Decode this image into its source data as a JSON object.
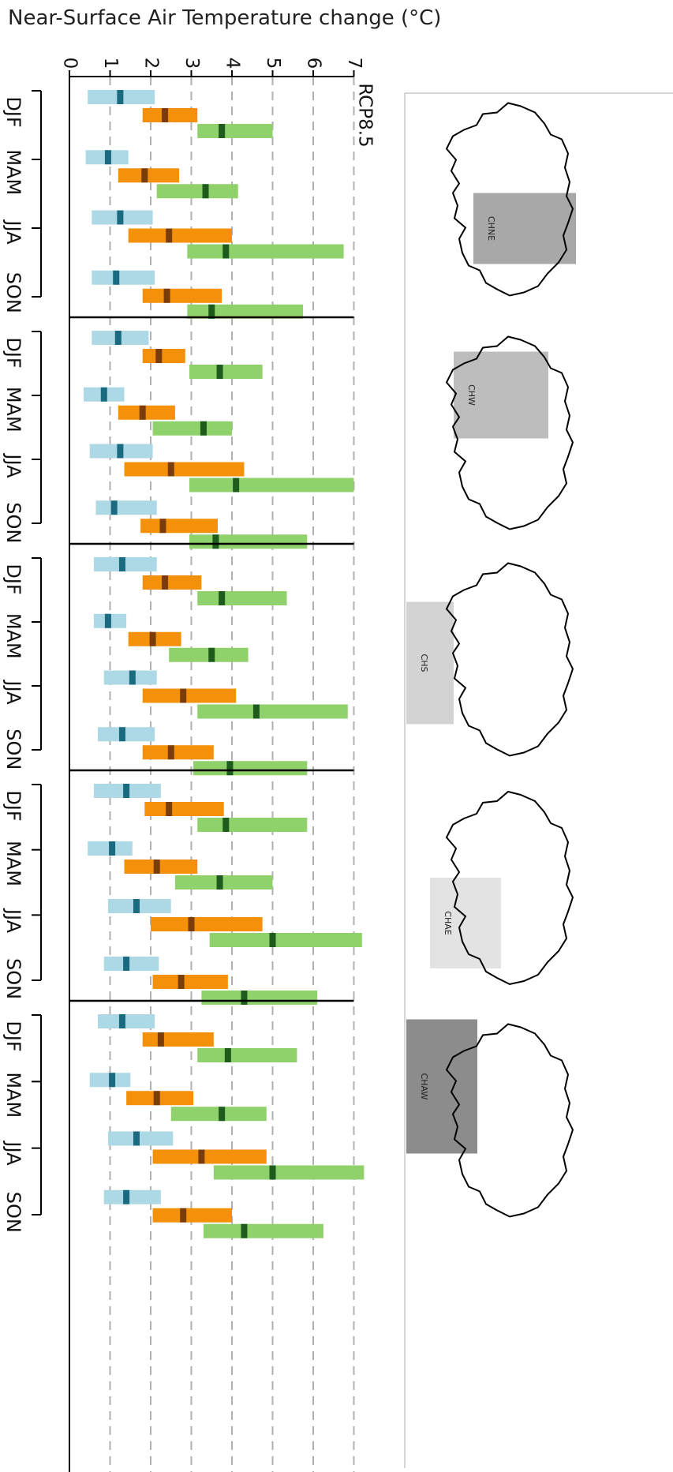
{
  "title": "Near-Surface Air Temperature change (°C)",
  "chart_data": {
    "type": "bar",
    "title": "Near-Surface Air Temperature change (°C)",
    "scenario": "RCP8.5",
    "xlim": [
      0,
      7
    ],
    "ticks": [
      0,
      1,
      2,
      3,
      4,
      5,
      6,
      7
    ],
    "grid": true,
    "seasons": [
      "DJF",
      "MAM",
      "JJA",
      "SON"
    ],
    "colors": {
      "blue": "#add8e6",
      "blue_median": "#1a6a80",
      "orange": "#f5900a",
      "orange_median": "#7a3d0a",
      "green": "#8fd16a",
      "green_median": "#1d5c1d"
    },
    "panels": [
      {
        "region": "CHNE",
        "region_color": "#a8a8a8",
        "seasons": [
          {
            "season": "DJF",
            "ranges": [
              [
                0.45,
                2.1,
                1.25
              ],
              [
                1.8,
                3.15,
                2.35
              ],
              [
                3.15,
                5.0,
                3.75
              ]
            ]
          },
          {
            "season": "MAM",
            "ranges": [
              [
                0.4,
                1.45,
                0.95
              ],
              [
                1.2,
                2.7,
                1.85
              ],
              [
                2.15,
                4.15,
                3.35
              ]
            ]
          },
          {
            "season": "JJA",
            "ranges": [
              [
                0.55,
                2.05,
                1.25
              ],
              [
                1.45,
                4.0,
                2.45
              ],
              [
                2.9,
                6.75,
                3.85
              ]
            ]
          },
          {
            "season": "SON",
            "ranges": [
              [
                0.55,
                2.1,
                1.15
              ],
              [
                1.8,
                3.75,
                2.4
              ],
              [
                2.9,
                5.75,
                3.5
              ]
            ]
          }
        ]
      },
      {
        "region": "CHW",
        "region_color": "#bdbdbd",
        "seasons": [
          {
            "season": "DJF",
            "ranges": [
              [
                0.55,
                1.95,
                1.2
              ],
              [
                1.8,
                2.85,
                2.2
              ],
              [
                2.95,
                4.75,
                3.7
              ]
            ]
          },
          {
            "season": "MAM",
            "ranges": [
              [
                0.35,
                1.35,
                0.85
              ],
              [
                1.2,
                2.6,
                1.8
              ],
              [
                2.05,
                4.0,
                3.3
              ]
            ]
          },
          {
            "season": "JJA",
            "ranges": [
              [
                0.5,
                2.05,
                1.25
              ],
              [
                1.35,
                4.3,
                2.5
              ],
              [
                2.95,
                7.0,
                4.1
              ]
            ]
          },
          {
            "season": "SON",
            "ranges": [
              [
                0.65,
                2.15,
                1.1
              ],
              [
                1.75,
                3.65,
                2.3
              ],
              [
                2.95,
                5.85,
                3.6
              ]
            ]
          }
        ]
      },
      {
        "region": "CHS",
        "region_color": "#d3d3d3",
        "seasons": [
          {
            "season": "DJF",
            "ranges": [
              [
                0.6,
                2.15,
                1.3
              ],
              [
                1.8,
                3.25,
                2.35
              ],
              [
                3.15,
                5.35,
                3.75
              ]
            ]
          },
          {
            "season": "MAM",
            "ranges": [
              [
                0.6,
                1.4,
                0.95
              ],
              [
                1.45,
                2.75,
                2.05
              ],
              [
                2.45,
                4.4,
                3.5
              ]
            ]
          },
          {
            "season": "JJA",
            "ranges": [
              [
                0.85,
                2.15,
                1.55
              ],
              [
                1.8,
                4.1,
                2.8
              ],
              [
                3.15,
                6.85,
                4.6
              ]
            ]
          },
          {
            "season": "SON",
            "ranges": [
              [
                0.7,
                2.1,
                1.3
              ],
              [
                1.8,
                3.55,
                2.5
              ],
              [
                3.05,
                5.85,
                3.95
              ]
            ]
          }
        ]
      },
      {
        "region": "CHAE",
        "region_color": "#e3e3e3",
        "seasons": [
          {
            "season": "DJF",
            "ranges": [
              [
                0.6,
                2.25,
                1.4
              ],
              [
                1.85,
                3.8,
                2.45
              ],
              [
                3.15,
                5.85,
                3.85
              ]
            ]
          },
          {
            "season": "MAM",
            "ranges": [
              [
                0.45,
                1.55,
                1.05
              ],
              [
                1.35,
                3.15,
                2.15
              ],
              [
                2.6,
                5.0,
                3.7
              ]
            ]
          },
          {
            "season": "JJA",
            "ranges": [
              [
                0.95,
                2.5,
                1.65
              ],
              [
                2.0,
                4.75,
                3.0
              ],
              [
                3.45,
                7.2,
                5.0
              ]
            ]
          },
          {
            "season": "SON",
            "ranges": [
              [
                0.85,
                2.2,
                1.4
              ],
              [
                2.05,
                3.9,
                2.75
              ],
              [
                3.25,
                6.1,
                4.3
              ]
            ]
          }
        ]
      },
      {
        "region": "CHAW",
        "region_color": "#8c8c8c",
        "seasons": [
          {
            "season": "DJF",
            "ranges": [
              [
                0.7,
                2.1,
                1.3
              ],
              [
                1.8,
                3.55,
                2.25
              ],
              [
                3.15,
                5.6,
                3.9
              ]
            ]
          },
          {
            "season": "MAM",
            "ranges": [
              [
                0.5,
                1.5,
                1.05
              ],
              [
                1.4,
                3.05,
                2.15
              ],
              [
                2.5,
                4.85,
                3.75
              ]
            ]
          },
          {
            "season": "JJA",
            "ranges": [
              [
                0.95,
                2.55,
                1.65
              ],
              [
                2.05,
                4.85,
                3.25
              ],
              [
                3.55,
                7.25,
                5.0
              ]
            ]
          },
          {
            "season": "SON",
            "ranges": [
              [
                0.85,
                2.25,
                1.4
              ],
              [
                2.05,
                4.0,
                2.8
              ],
              [
                3.3,
                6.25,
                4.3
              ]
            ]
          }
        ]
      }
    ]
  }
}
